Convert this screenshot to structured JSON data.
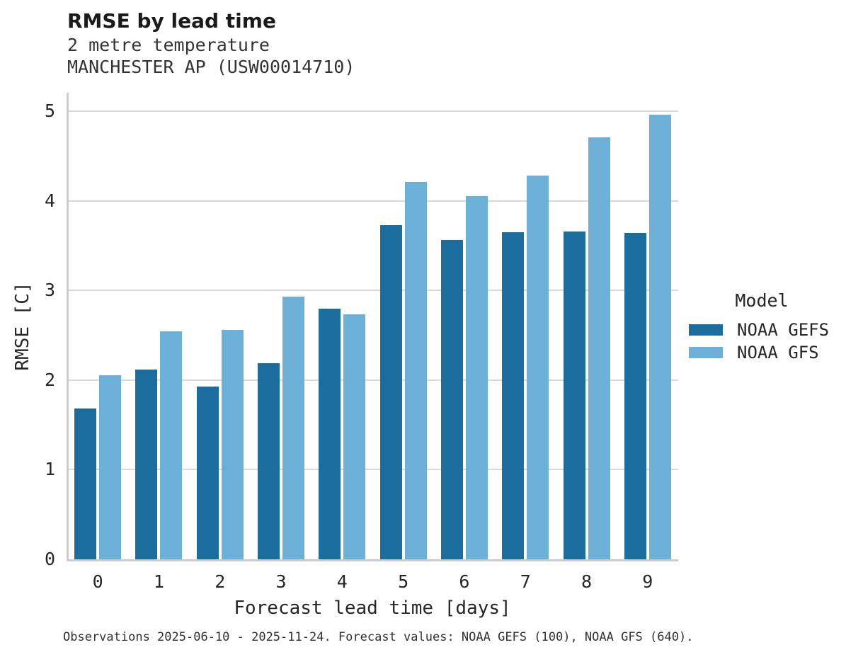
{
  "header": {
    "title": "RMSE by lead time",
    "subtitle1": "2 metre temperature",
    "subtitle2": "MANCHESTER AP (USW00014710)"
  },
  "chart_data": {
    "type": "bar",
    "title": "RMSE by lead time",
    "subtitle_lines": [
      "2 metre temperature",
      "MANCHESTER AP (USW00014710)"
    ],
    "categories": [
      "0",
      "1",
      "2",
      "3",
      "4",
      "5",
      "6",
      "7",
      "8",
      "9"
    ],
    "series": [
      {
        "name": "NOAA GEFS",
        "color": "#1b6d9e",
        "values": [
          1.68,
          2.12,
          1.93,
          2.19,
          2.8,
          3.73,
          3.56,
          3.65,
          3.66,
          3.64
        ]
      },
      {
        "name": "NOAA GFS",
        "color": "#6cb0d8",
        "values": [
          2.05,
          2.54,
          2.56,
          2.93,
          2.73,
          4.21,
          4.05,
          4.28,
          4.71,
          4.96
        ]
      }
    ],
    "xlabel": "Forecast lead time [days]",
    "ylabel": "RMSE [C]",
    "ylim": [
      0,
      5.2
    ],
    "yticks": [
      0,
      1,
      2,
      3,
      4,
      5
    ],
    "grid": "horizontal",
    "legend": {
      "title": "Model",
      "position": "right-center"
    }
  },
  "colors": {
    "bar_gefs": "#1b6d9e",
    "bar_gfs": "#6cb0d8",
    "gridline": "#d8d8d8",
    "spine": "#cccccc",
    "text": "#262626"
  },
  "caption": "Observations 2025-06-10 - 2025-11-24. Forecast values: NOAA GEFS (100), NOAA GFS (640)."
}
